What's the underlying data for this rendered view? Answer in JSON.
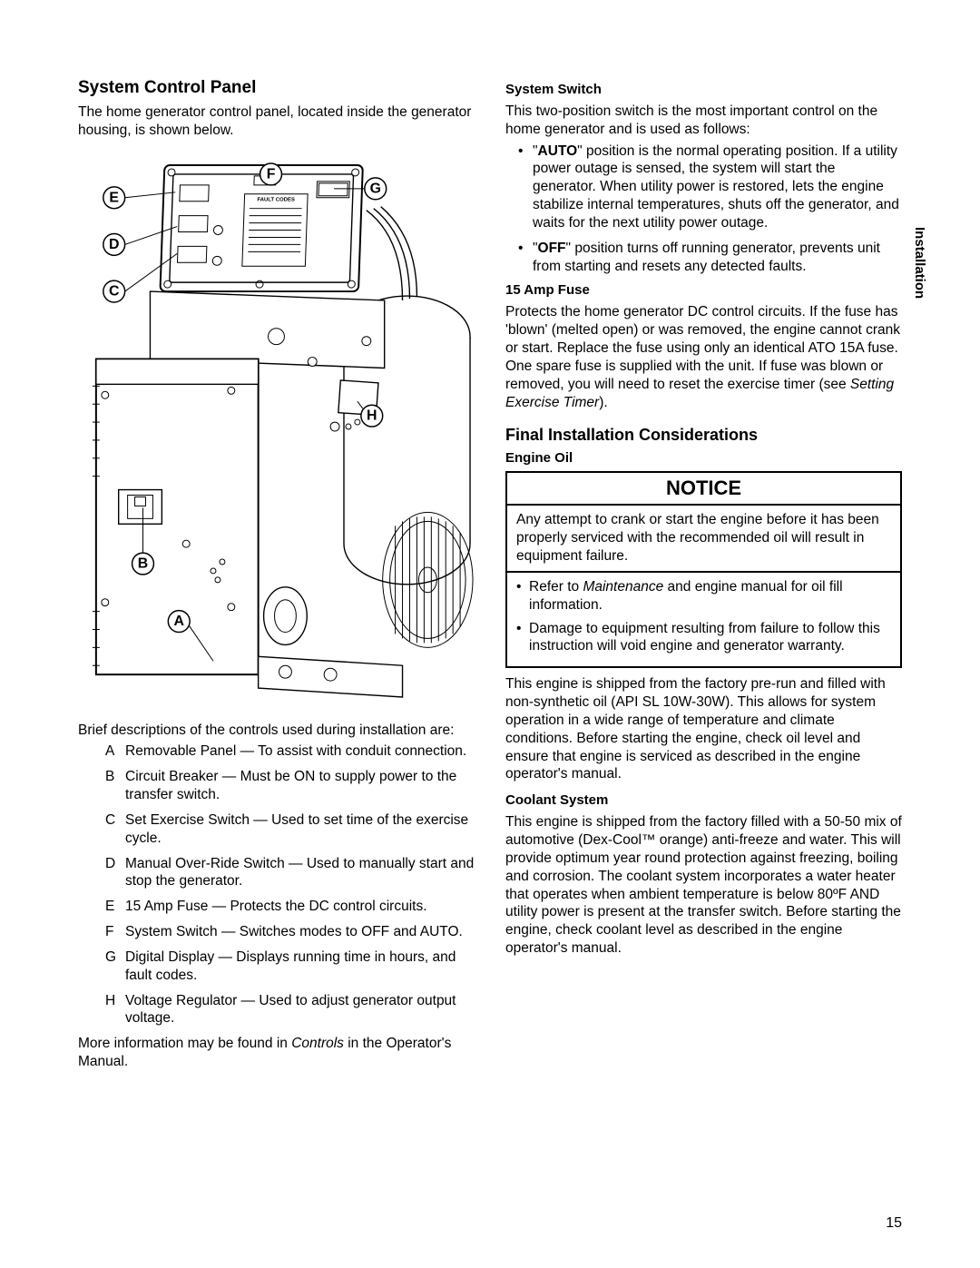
{
  "sideTab": "Installation",
  "pageNumber": "15",
  "left": {
    "title": "System Control Panel",
    "intro": "The home generator control panel, located inside the generator housing, is shown below.",
    "callouts": {
      "A": "A",
      "B": "B",
      "C": "C",
      "D": "D",
      "E": "E",
      "F": "F",
      "G": "G",
      "H": "H"
    },
    "panelLabel": "FAULT CODES",
    "listIntro": "Brief descriptions of the controls used during installation are:",
    "items": [
      {
        "letter": "A",
        "text": "Removable Panel — To assist with conduit connection."
      },
      {
        "letter": "B",
        "text": "Circuit Breaker — Must be ON to supply power to the transfer switch."
      },
      {
        "letter": "C",
        "text": "Set Exercise Switch — Used to set time of the exercise cycle."
      },
      {
        "letter": "D",
        "text": "Manual Over-Ride Switch — Used to manually start and stop the generator."
      },
      {
        "letter": "E",
        "text": "15 Amp Fuse — Protects the DC control circuits."
      },
      {
        "letter": "F",
        "text": "System Switch — Switches modes to OFF and AUTO."
      },
      {
        "letter": "G",
        "text": "Digital Display — Displays running time in hours, and fault codes."
      },
      {
        "letter": "H",
        "text": "Voltage Regulator — Used to adjust generator output voltage."
      }
    ],
    "moreInfoA": "More information may be found in ",
    "moreInfoItalic": "Controls",
    "moreInfoB": " in the Operator's Manual."
  },
  "right": {
    "switchTitle": "System Switch",
    "switchIntro": "This two-position switch is the most important control on the home generator and is used as follows:",
    "switchBullets": [
      {
        "boldQuoted": "AUTO",
        "rest": " position is the normal operating position. If a utility power outage is sensed, the system will start the generator. When utility power is restored, lets the engine stabilize internal temperatures, shuts off the generator, and waits for the next utility power outage."
      },
      {
        "boldQuoted": "OFF",
        "rest": " position turns off running generator, prevents unit from starting and resets any detected faults."
      }
    ],
    "fuseTitle": "15 Amp Fuse",
    "fuseBodyA": "Protects the home generator DC control circuits. If the fuse has 'blown' (melted open) or was removed, the engine cannot crank or start. Replace the fuse using only an identical ATO 15A fuse. One spare fuse is supplied with the unit. If fuse was blown or removed, you will need to reset the exercise timer (see ",
    "fuseItalic": "Setting Exercise Timer",
    "fuseBodyB": ").",
    "finalTitle": "Final Installation Considerations",
    "oilTitle": "Engine Oil",
    "notice": {
      "header": "NOTICE",
      "body": "Any attempt to crank or start the engine before it has been properly serviced with the recommended oil will result in equipment failure.",
      "bullets": [
        {
          "a": "Refer to ",
          "ital": "Maintenance",
          "b": " and engine manual for oil fill information."
        },
        {
          "a": "Damage to equipment resulting from failure to follow this instruction will void engine and generator warranty.",
          "ital": "",
          "b": ""
        }
      ]
    },
    "oilBody": "This engine is shipped from the factory pre-run and filled with non-synthetic oil (API SL 10W-30W). This allows for system operation in a wide range of temperature and climate conditions. Before starting the engine, check oil level and ensure that engine is serviced as described in the engine operator's manual.",
    "coolantTitle": "Coolant System",
    "coolantBody": "This engine is shipped from the factory filled with a 50-50 mix of automotive (Dex-Cool™ orange) anti-freeze and water. This will provide optimum year round protection against freezing, boiling and corrosion. The coolant system incorporates a water heater that operates when ambient temperature is below 80ºF AND utility power is present at the transfer switch. Before starting the engine, check coolant level as described in the engine operator's manual."
  },
  "colors": {
    "text": "#000000",
    "background": "#ffffff",
    "border": "#000000"
  }
}
